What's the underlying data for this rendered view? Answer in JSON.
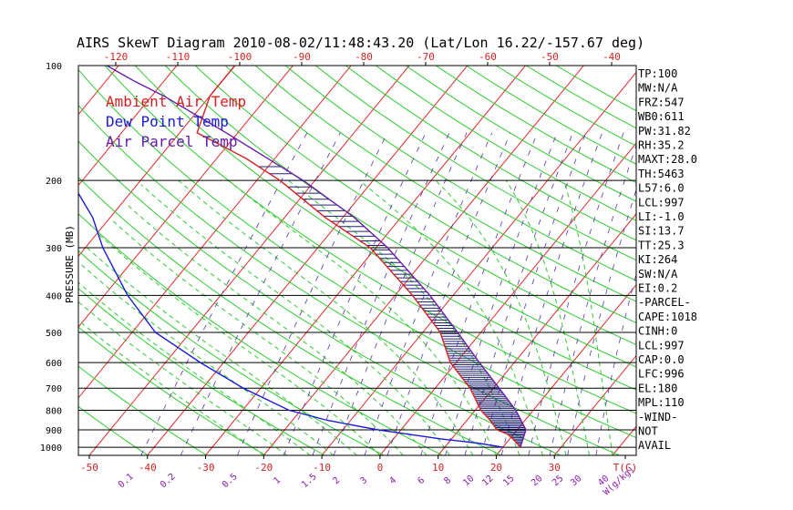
{
  "chart_data": {
    "type": "skew-t",
    "title": "AIRS SkewT Diagram 2010-08-02/11:48:43.20 (Lat/Lon 16.22/-157.67 deg)",
    "ylabel": "PRESSURE (MB)",
    "y_scale": "log",
    "ylim": [
      1050,
      100
    ],
    "bottom_temp_range": [
      -50,
      40
    ],
    "pressure_ticks": [
      100,
      200,
      300,
      400,
      500,
      600,
      700,
      800,
      900,
      1000
    ],
    "bottom_ticks": [
      "-50",
      "-40",
      "-30",
      "-20",
      "-10",
      "0",
      "10",
      "20",
      "30",
      "T(C)"
    ],
    "top_ticks": [
      "-120",
      "-110",
      "-100",
      "-90",
      "-80",
      "-70",
      "-60",
      "-50",
      "-40"
    ],
    "mixing_ratio_labels": [
      "0.1",
      "0.2",
      "0.5",
      "1",
      "1.5",
      "2",
      "3",
      "4",
      "6",
      "8",
      "10",
      "12",
      "15",
      "20",
      "25",
      "30",
      "40",
      "W(g/kg)"
    ],
    "legend": [
      {
        "label": "Ambient Air Temp",
        "color": "#d42020"
      },
      {
        "label": "Dew Point Temp",
        "color": "#1a1ad8"
      },
      {
        "label": "Air Parcel Temp",
        "color": "#6a1aa8"
      }
    ],
    "series": [
      {
        "name": "Ambient Air Temp",
        "points": [
          [
            1000,
            23.0
          ],
          [
            980,
            22.0
          ],
          [
            950,
            20.5
          ],
          [
            925,
            19.0
          ],
          [
            900,
            16.5
          ],
          [
            850,
            14.0
          ],
          [
            800,
            11.0
          ],
          [
            700,
            6.0
          ],
          [
            600,
            -1.0
          ],
          [
            500,
            -7.0
          ],
          [
            400,
            -17.0
          ],
          [
            300,
            -31.0
          ],
          [
            250,
            -43.0
          ],
          [
            200,
            -56.0
          ],
          [
            175,
            -65.0
          ],
          [
            150,
            -77.0
          ],
          [
            120,
            -80.0
          ],
          [
            100,
            -80.0
          ]
        ]
      },
      {
        "name": "Dew Point Temp",
        "points": [
          [
            1000,
            20.0
          ],
          [
            975,
            15.0
          ],
          [
            950,
            8.0
          ],
          [
            900,
            -4.0
          ],
          [
            850,
            -14.0
          ],
          [
            800,
            -22.0
          ],
          [
            700,
            -33.0
          ],
          [
            600,
            -44.0
          ],
          [
            500,
            -56.0
          ],
          [
            400,
            -66.0
          ],
          [
            300,
            -77.0
          ],
          [
            250,
            -83.0
          ],
          [
            200,
            -92.0
          ],
          [
            150,
            -98.0
          ],
          [
            100,
            -110.0
          ]
        ]
      },
      {
        "name": "Air Parcel Temp",
        "points": [
          [
            1000,
            23.0
          ],
          [
            900,
            21.5
          ],
          [
            800,
            17.0
          ],
          [
            700,
            11.0
          ],
          [
            600,
            4.0
          ],
          [
            500,
            -4.0
          ],
          [
            400,
            -14.0
          ],
          [
            300,
            -28.0
          ],
          [
            250,
            -38.0
          ],
          [
            200,
            -52.0
          ],
          [
            150,
            -72.0
          ],
          [
            120,
            -88.0
          ],
          [
            110,
            -95.0
          ],
          [
            100,
            -102.0
          ]
        ]
      }
    ]
  },
  "indices": [
    "TP:100",
    "MW:N/A",
    "FRZ:547",
    "WB0:611",
    "PW:31.82",
    "RH:35.2",
    "MAXT:28.0",
    "TH:5463",
    "L57:6.0",
    "LCL:997",
    "LI:-1.0",
    "SI:13.7",
    "TT:25.3",
    "KI:264",
    "SW:N/A",
    "EI:0.2",
    "-PARCEL-",
    "CAPE:1018",
    "CINH:0",
    "LCL:997",
    "CAP:0.0",
    "LFC:996",
    "EL:180",
    "MPL:110",
    "-WIND-",
    "NOT",
    "AVAIL"
  ],
  "colors": {
    "isotherm": "#e02a2a",
    "dry_adiabat": "#2ecc2e",
    "moist_adiabat": "#2ecc2e",
    "mixing_ratio": "#5a30b0",
    "isobar": "#000000",
    "top_axis_text": "#d42020",
    "bottom_axis_text": "#d42020",
    "mixing_label_text": "#8a1ab0",
    "hatch": "#202070"
  }
}
